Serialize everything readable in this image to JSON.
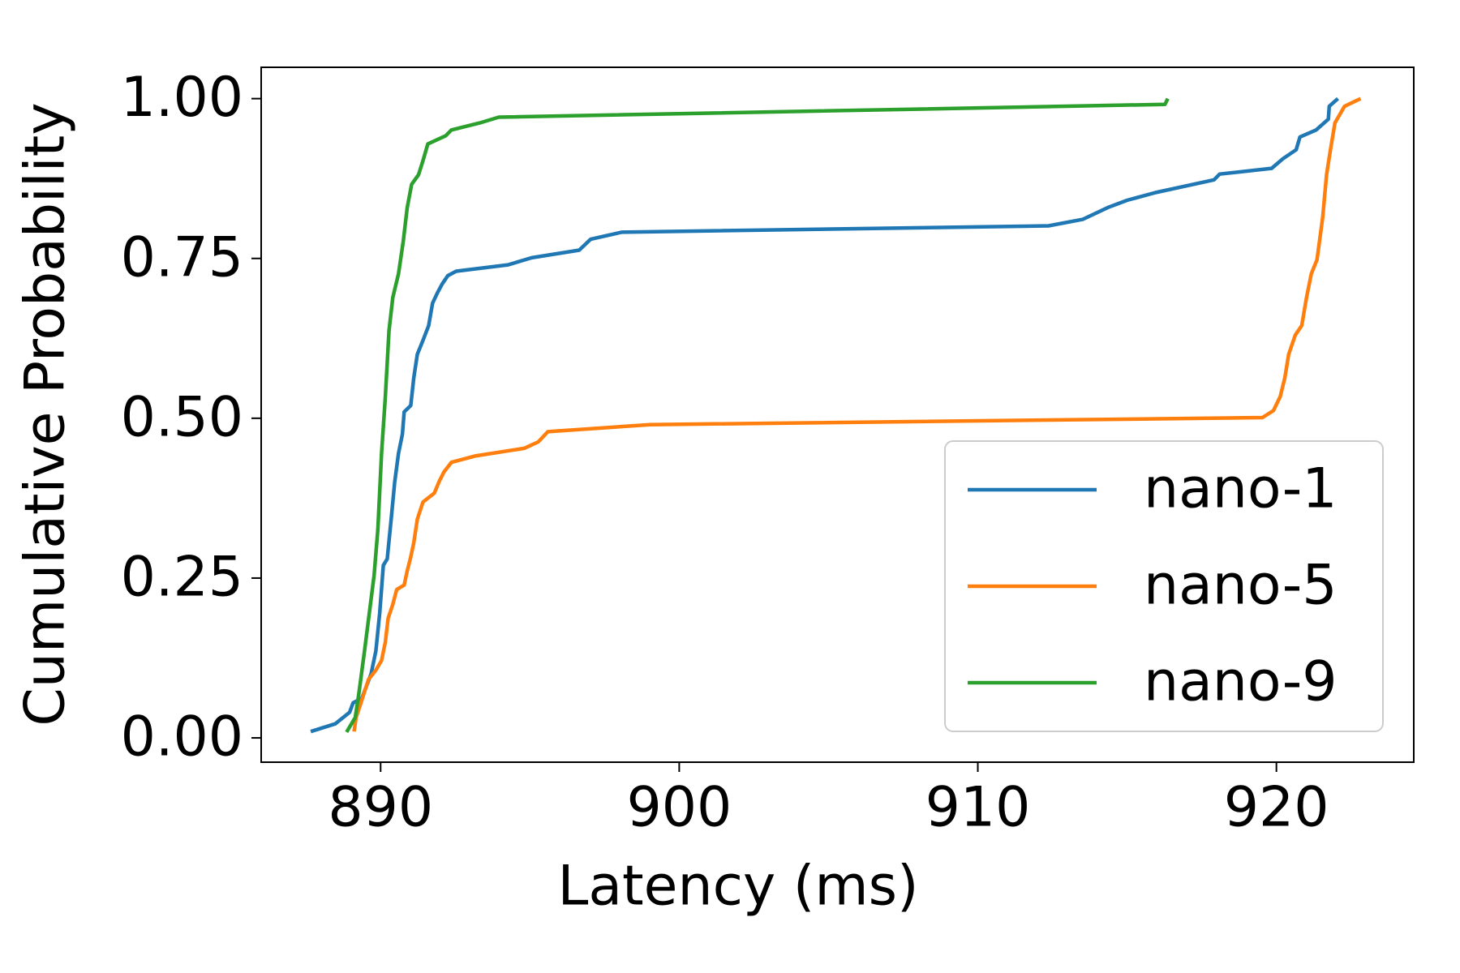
{
  "chart_data": {
    "type": "line",
    "x_label": "Latency (ms)",
    "y_label": "Cumulative Probability",
    "xlim": [
      886,
      924.6
    ],
    "ylim": [
      -0.038,
      1.049
    ],
    "xticks": [
      890,
      900,
      910,
      920
    ],
    "yticks": [
      {
        "value": 0,
        "label": "0.00"
      },
      {
        "value": 0.25,
        "label": "0.25"
      },
      {
        "value": 0.5,
        "label": "0.50"
      },
      {
        "value": 0.75,
        "label": "0.75"
      },
      {
        "value": 1,
        "label": "1.00"
      }
    ],
    "legend": "lower right",
    "series": [
      {
        "name": "nano-1",
        "color": "#1f77b4",
        "x": [
          887.66,
          888.48,
          888.96,
          889.08,
          889.37,
          889.68,
          889.84,
          889.97,
          890.09,
          890.22,
          890.35,
          890.47,
          890.6,
          890.73,
          890.79,
          891.01,
          891.11,
          891.23,
          891.42,
          891.61,
          891.74,
          891.9,
          892.06,
          892.25,
          892.53,
          894.27,
          895.06,
          896.65,
          897.03,
          898.07,
          912.37,
          913.51,
          914.37,
          915.0,
          915.95,
          917.91,
          918.1,
          919.84,
          920.22,
          920.66,
          920.79,
          921.33,
          921.74,
          921.77,
          922.06
        ],
        "values": [
          0.01,
          0.022,
          0.04,
          0.055,
          0.062,
          0.1,
          0.136,
          0.195,
          0.27,
          0.28,
          0.34,
          0.4,
          0.445,
          0.475,
          0.51,
          0.52,
          0.563,
          0.6,
          0.622,
          0.645,
          0.68,
          0.696,
          0.71,
          0.723,
          0.73,
          0.74,
          0.751,
          0.763,
          0.78,
          0.791,
          0.801,
          0.811,
          0.83,
          0.841,
          0.853,
          0.873,
          0.882,
          0.891,
          0.906,
          0.92,
          0.94,
          0.951,
          0.968,
          0.988,
          1.0
        ]
      },
      {
        "name": "nano-5",
        "color": "#ff7f0e",
        "x": [
          889.11,
          889.18,
          889.37,
          889.59,
          889.84,
          890.03,
          890.16,
          890.25,
          890.41,
          890.54,
          890.79,
          890.89,
          891.01,
          891.11,
          891.23,
          891.42,
          891.8,
          891.96,
          892.12,
          892.37,
          893.16,
          894.81,
          895.28,
          895.6,
          899.02,
          919.53,
          919.9,
          920.13,
          920.28,
          920.41,
          920.63,
          920.85,
          921.01,
          921.17,
          921.36,
          921.55,
          921.68,
          921.8,
          921.96,
          922.28,
          922.82
        ],
        "values": [
          0.01,
          0.032,
          0.059,
          0.091,
          0.106,
          0.121,
          0.15,
          0.187,
          0.209,
          0.232,
          0.239,
          0.261,
          0.283,
          0.305,
          0.342,
          0.369,
          0.383,
          0.401,
          0.416,
          0.431,
          0.441,
          0.453,
          0.463,
          0.479,
          0.49,
          0.501,
          0.512,
          0.534,
          0.563,
          0.6,
          0.63,
          0.645,
          0.689,
          0.726,
          0.748,
          0.814,
          0.881,
          0.917,
          0.962,
          0.988,
          1.0
        ]
      },
      {
        "name": "nano-9",
        "color": "#2ca02c",
        "x": [
          888.86,
          889.15,
          889.27,
          889.46,
          889.62,
          889.78,
          889.91,
          890.03,
          890.16,
          890.28,
          890.41,
          890.6,
          890.76,
          890.89,
          891.04,
          891.27,
          891.42,
          891.58,
          892.18,
          892.37,
          893.32,
          893.96,
          916.27,
          916.36
        ],
        "values": [
          0.009,
          0.032,
          0.069,
          0.136,
          0.195,
          0.254,
          0.327,
          0.445,
          0.534,
          0.637,
          0.689,
          0.726,
          0.777,
          0.829,
          0.866,
          0.881,
          0.903,
          0.929,
          0.942,
          0.951,
          0.962,
          0.971,
          0.991,
          1.0
        ]
      }
    ]
  }
}
